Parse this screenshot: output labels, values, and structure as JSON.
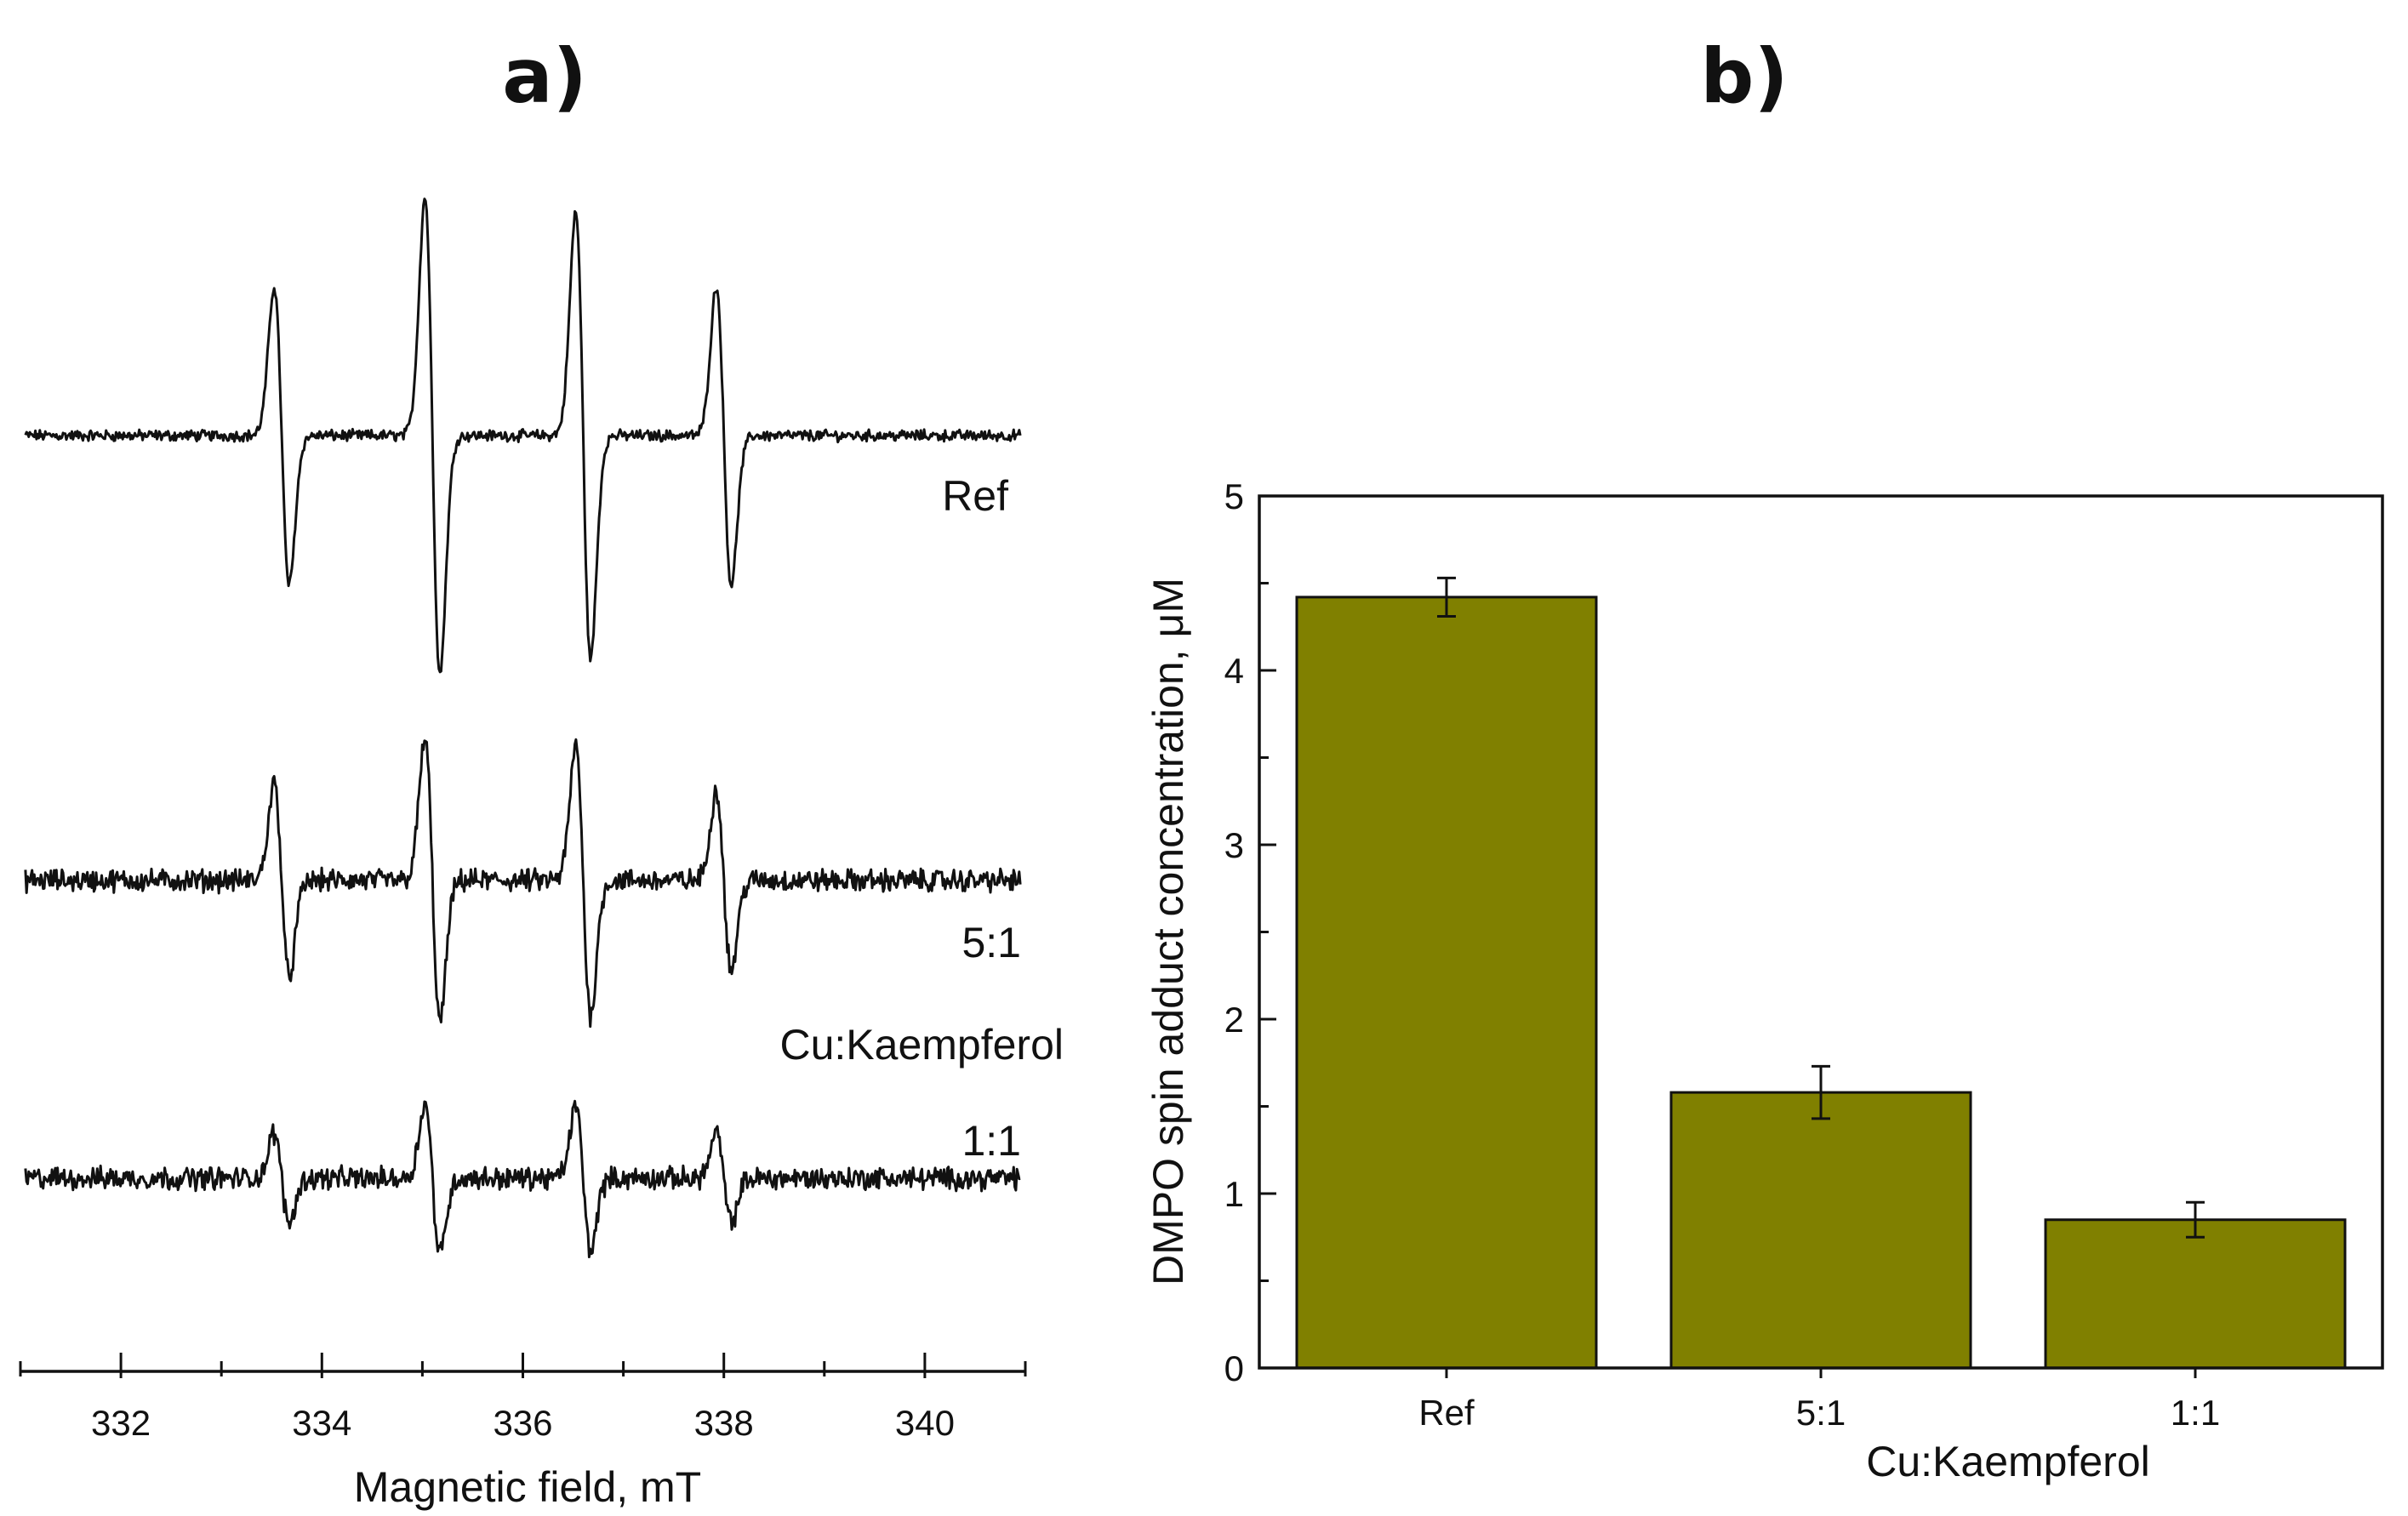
{
  "chart_data": [
    {
      "panel": "a)",
      "type": "line",
      "title": "",
      "xlabel": "Magnetic field, mT",
      "ylabel": "",
      "xlim": [
        331,
        341
      ],
      "xticks": [
        332,
        334,
        336,
        338,
        340
      ],
      "xtick_labels": [
        "332",
        "334",
        "336",
        "338",
        "340"
      ],
      "group_label": "Cu:Kaempferol",
      "peak_centers_mT": [
        333.6,
        335.1,
        336.6,
        338.0
      ],
      "series": [
        {
          "name": "Ref",
          "label": "Ref",
          "amplitude": [
            1.0,
            1.6,
            1.5,
            1.0
          ],
          "noise": 0.03
        },
        {
          "name": "5:1",
          "label": "5:1",
          "amplitude": [
            0.65,
            0.95,
            0.9,
            0.6
          ],
          "noise": 0.06
        },
        {
          "name": "1:1",
          "label": "1:1",
          "amplitude": [
            0.3,
            0.5,
            0.48,
            0.3
          ],
          "noise": 0.06
        }
      ]
    },
    {
      "panel": "b)",
      "type": "bar",
      "title": "",
      "xlabel": "Cu:Kaempferol",
      "ylabel": "DMPO spin adduct concentration, μM",
      "categories": [
        "Ref",
        "5:1",
        "1:1"
      ],
      "values": [
        4.42,
        1.58,
        0.85
      ],
      "errors": [
        0.11,
        0.15,
        0.1
      ],
      "ylim": [
        0,
        5
      ],
      "yticks": [
        0,
        1,
        2,
        3,
        4,
        5
      ],
      "ytick_labels": [
        "0",
        "1",
        "2",
        "3",
        "4",
        "5"
      ],
      "bar_color": "#808000"
    }
  ]
}
